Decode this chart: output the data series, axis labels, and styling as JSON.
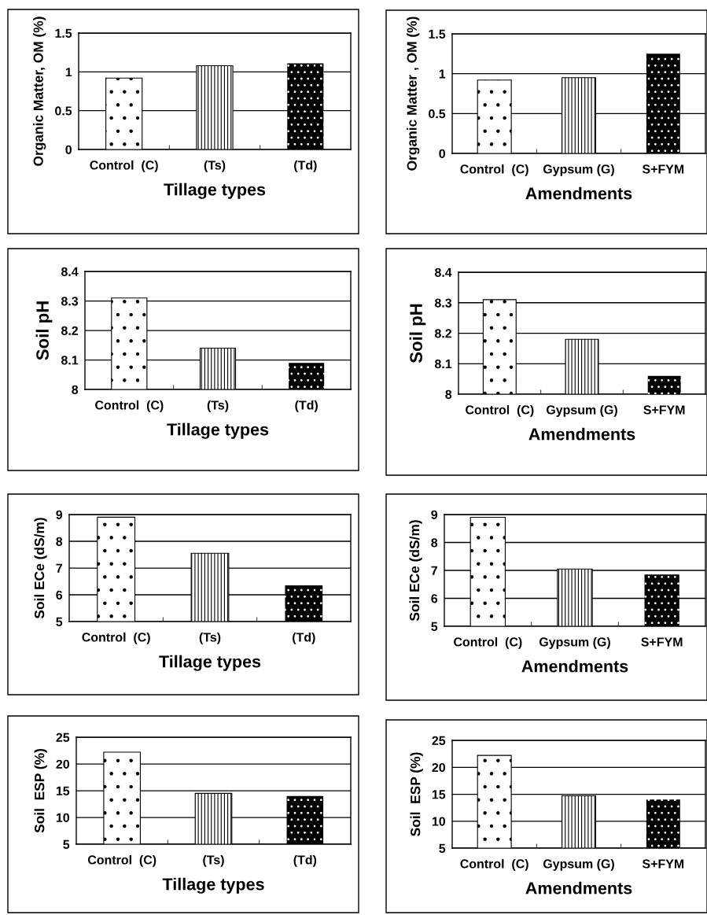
{
  "chart_data": [
    {
      "type": "bar",
      "categories": [
        "Control  (C)",
        "(Ts)",
        "(Td)"
      ],
      "values": [
        0.92,
        1.08,
        1.11
      ],
      "colors": [
        "#ffffff",
        "#ffffff",
        "#000000"
      ],
      "ylim": [
        0,
        1.5
      ],
      "yticks": [
        0,
        0.5,
        1,
        1.5
      ],
      "xlabel": "Tillage types",
      "ylabel": "Organic Matter, OM (%)",
      "grid": "y"
    },
    {
      "type": "bar",
      "categories": [
        "Control  (C)",
        "Gypsum (G)",
        "S+FYM"
      ],
      "values": [
        0.92,
        0.95,
        1.25
      ],
      "colors": [
        "#ffffff",
        "#ffffff",
        "#000000"
      ],
      "ylim": [
        0,
        1.5
      ],
      "yticks": [
        0,
        0.5,
        1,
        1.5
      ],
      "xlabel": "Amendments",
      "ylabel": "Organic Matter , OM (%)",
      "grid": "y"
    },
    {
      "type": "bar",
      "categories": [
        "Control  (C)",
        "(Ts)",
        "(Td)"
      ],
      "values": [
        8.31,
        8.14,
        8.09
      ],
      "colors": [
        "#ffffff",
        "#ffffff",
        "#000000"
      ],
      "ylim": [
        8,
        8.4
      ],
      "yticks": [
        8,
        8.1,
        8.2,
        8.3,
        8.4
      ],
      "xlabel": "Tillage types",
      "ylabel": "Soil pH",
      "grid": "y"
    },
    {
      "type": "bar",
      "categories": [
        "Control  (C)",
        "Gypsum (G)",
        "S+FYM"
      ],
      "values": [
        8.31,
        8.18,
        8.06
      ],
      "colors": [
        "#ffffff",
        "#ffffff",
        "#000000"
      ],
      "ylim": [
        8,
        8.4
      ],
      "yticks": [
        8,
        8.1,
        8.2,
        8.3,
        8.4
      ],
      "xlabel": "Amendments",
      "ylabel": "Soil pH",
      "grid": "y"
    },
    {
      "type": "bar",
      "categories": [
        "Control  (C)",
        "(Ts)",
        "(Td)"
      ],
      "values": [
        8.9,
        7.55,
        6.35
      ],
      "colors": [
        "#ffffff",
        "#ffffff",
        "#000000"
      ],
      "ylim": [
        5,
        9
      ],
      "yticks": [
        5,
        6,
        7,
        8,
        9
      ],
      "xlabel": "Tillage types",
      "ylabel": "Soil ECe (dS/m)",
      "grid": "y"
    },
    {
      "type": "bar",
      "categories": [
        "Control  (C)",
        "Gypsum (G)",
        "S+FYM"
      ],
      "values": [
        8.9,
        7.05,
        6.85
      ],
      "colors": [
        "#ffffff",
        "#ffffff",
        "#000000"
      ],
      "ylim": [
        5,
        9
      ],
      "yticks": [
        5,
        6,
        7,
        8,
        9
      ],
      "xlabel": "Amendments",
      "ylabel": "Soil ECe (dS/m)",
      "grid": "y"
    },
    {
      "type": "bar",
      "categories": [
        "Control  (C)",
        "(Ts)",
        "(Td)"
      ],
      "values": [
        22.2,
        14.5,
        14.0
      ],
      "colors": [
        "#ffffff",
        "#ffffff",
        "#000000"
      ],
      "ylim": [
        5,
        25
      ],
      "yticks": [
        5,
        10,
        15,
        20,
        25
      ],
      "xlabel": "Tillage types",
      "ylabel": "Soil  ESP (%)",
      "grid": "y"
    },
    {
      "type": "bar",
      "categories": [
        "Control  (C)",
        "Gypsum (G)",
        "S+FYM"
      ],
      "values": [
        22.2,
        14.7,
        14.0
      ],
      "colors": [
        "#ffffff",
        "#ffffff",
        "#000000"
      ],
      "ylim": [
        5,
        25
      ],
      "yticks": [
        5,
        10,
        15,
        20,
        25
      ],
      "xlabel": "Amendments",
      "ylabel": "Soil  ESP (%)",
      "grid": "y"
    }
  ]
}
